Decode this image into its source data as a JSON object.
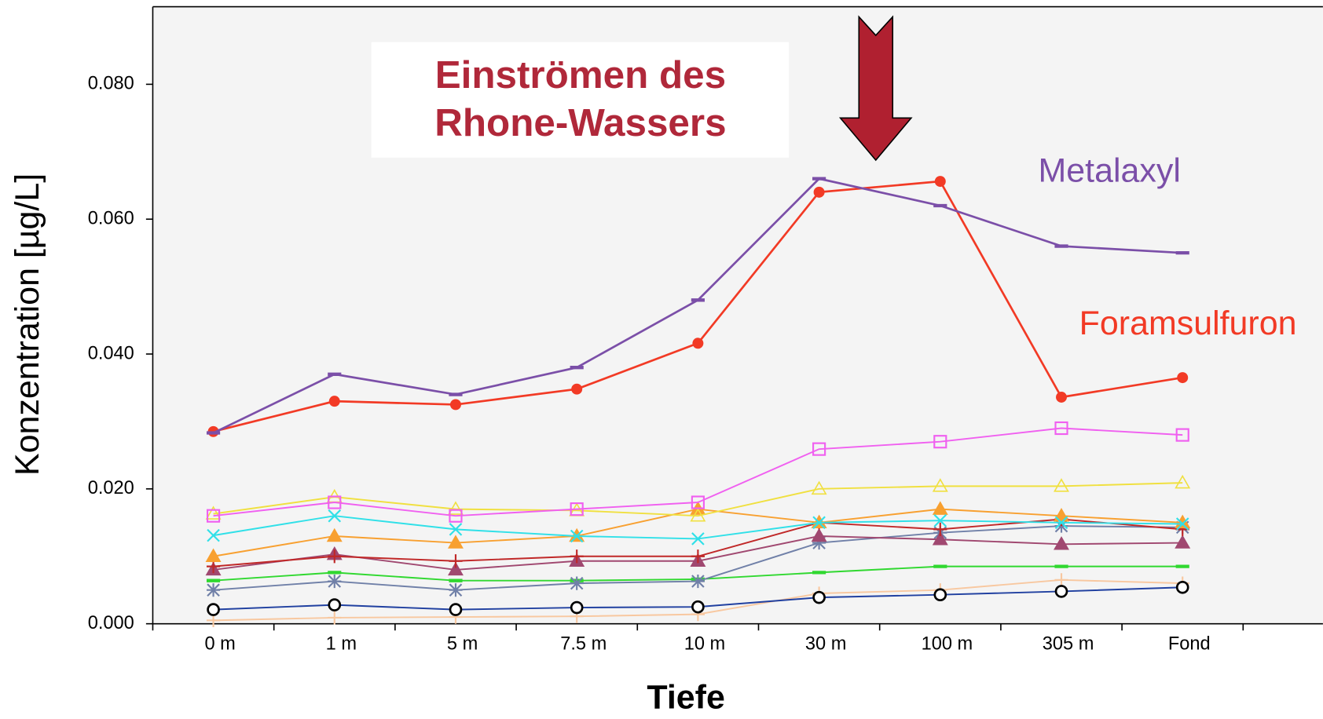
{
  "chart_data": {
    "type": "line",
    "xlabel": "Tiefe",
    "ylabel": "Konzentration  [µg/L]",
    "annotation": [
      "Einströmen des",
      "Rhone-Wassers"
    ],
    "categories": [
      "0 m",
      "1 m",
      "5 m",
      "7.5 m",
      "10 m",
      "30 m",
      "100 m",
      "305 m",
      "Fond"
    ],
    "ylim": [
      0,
      0.0915
    ],
    "yticks": [
      {
        "value": 0,
        "label": "0.000"
      },
      {
        "value": 0.02,
        "label": "0.020"
      },
      {
        "value": 0.04,
        "label": "0.040"
      },
      {
        "value": 0.06,
        "label": "0.060"
      },
      {
        "value": 0.08,
        "label": "0.080"
      }
    ],
    "series": [
      {
        "name": "Metalaxyl",
        "color": "#7b4fa8",
        "marker": "dash",
        "values": [
          0.0283,
          0.037,
          0.034,
          0.038,
          0.048,
          0.066,
          0.062,
          0.056,
          0.055
        ]
      },
      {
        "name": "Foramsulfuron",
        "color": "#f23a25",
        "marker": "circle",
        "values": [
          0.0285,
          0.033,
          0.0325,
          0.0348,
          0.0416,
          0.064,
          0.0656,
          0.0336,
          0.0365
        ]
      },
      {
        "color": "#f060f0",
        "marker": "square-open",
        "values": [
          0.016,
          0.018,
          0.016,
          0.017,
          0.018,
          0.0259,
          0.027,
          0.029,
          0.028
        ]
      },
      {
        "color": "#f0e040",
        "marker": "triangle-open",
        "values": [
          0.0163,
          0.0188,
          0.017,
          0.0168,
          0.016,
          0.02,
          0.0204,
          0.0204,
          0.0209
        ]
      },
      {
        "color": "#30e0e8",
        "marker": "x",
        "values": [
          0.0131,
          0.016,
          0.014,
          0.013,
          0.0126,
          0.015,
          0.0153,
          0.015,
          0.0148
        ]
      },
      {
        "color": "#f8a030",
        "marker": "triangle",
        "values": [
          0.01,
          0.013,
          0.012,
          0.013,
          0.017,
          0.015,
          0.017,
          0.016,
          0.015
        ]
      },
      {
        "color": "#c02828",
        "marker": "plus",
        "values": [
          0.0085,
          0.01,
          0.0093,
          0.01,
          0.01,
          0.015,
          0.014,
          0.0155,
          0.014
        ]
      },
      {
        "color": "#a04870",
        "marker": "triangle",
        "values": [
          0.008,
          0.0103,
          0.008,
          0.0093,
          0.0093,
          0.013,
          0.0125,
          0.0118,
          0.012
        ]
      },
      {
        "color": "#7080a8",
        "marker": "asterisk",
        "values": [
          0.005,
          0.0063,
          0.005,
          0.006,
          0.0063,
          0.012,
          0.0135,
          0.0145,
          0.0143
        ]
      },
      {
        "color": "#30d830",
        "marker": "dash",
        "values": [
          0.0064,
          0.0076,
          0.0064,
          0.0064,
          0.0066,
          0.0076,
          0.0085,
          0.0085,
          0.0085
        ]
      },
      {
        "color": "#2040a0",
        "marker": "circle-open",
        "values": [
          0.0021,
          0.0028,
          0.0021,
          0.0024,
          0.0025,
          0.0039,
          0.0043,
          0.0048,
          0.0054
        ]
      },
      {
        "color": "#f8c8a0",
        "marker": "plus",
        "values": [
          0.0005,
          0.0009,
          0.001,
          0.0011,
          0.0014,
          0.0045,
          0.005,
          0.0065,
          0.006
        ]
      }
    ]
  }
}
